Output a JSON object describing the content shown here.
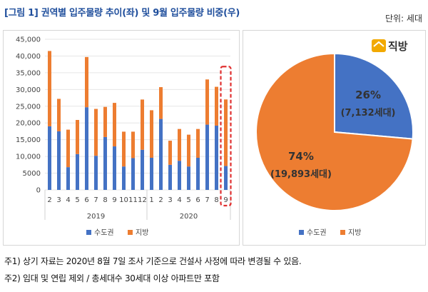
{
  "header": {
    "title": "[그림 1] 권역별 입주물량 추이(좌) 및 9월 입주물량 비중(우)",
    "unit": "단위: 세대"
  },
  "logo": {
    "text": "직방"
  },
  "notes": [
    "주1) 상기 자료는 2020년 8월 7일 조사 기준으로 건설사 사정에 따라 변경될 수 있음.",
    "주2) 임대 및 연립 제외 / 총세대수 30세대 이상 아파트만 포함"
  ],
  "colors": {
    "capital": "#4472c4",
    "regional": "#ed7d31",
    "highlight": "#e03030"
  },
  "chart_data": [
    {
      "type": "bar",
      "stacked": true,
      "categories": [
        "2",
        "3",
        "4",
        "5",
        "6",
        "7",
        "8",
        "9",
        "10",
        "11",
        "12",
        "1",
        "2",
        "3",
        "4",
        "5",
        "6",
        "7",
        "8",
        "9"
      ],
      "years": [
        {
          "label": "2019",
          "span": [
            0,
            10
          ]
        },
        {
          "label": "2020",
          "span": [
            11,
            19
          ]
        }
      ],
      "series": [
        {
          "name": "수도권",
          "color": "#4472c4",
          "values": [
            19000,
            17500,
            6800,
            10700,
            24700,
            10200,
            15800,
            13000,
            7000,
            9500,
            12000,
            9600,
            21200,
            7500,
            8700,
            7000,
            9600,
            19500,
            19200,
            7132
          ]
        },
        {
          "name": "지방",
          "color": "#ed7d31",
          "values": [
            22500,
            9700,
            11200,
            10200,
            15000,
            14000,
            9000,
            13000,
            10400,
            7900,
            15000,
            14200,
            9500,
            7200,
            9500,
            9500,
            8600,
            13500,
            11600,
            19893
          ]
        }
      ],
      "ylim": [
        0,
        45000
      ],
      "yticks": [
        "0",
        "5000",
        "10,000",
        "15,000",
        "20,000",
        "25,000",
        "30,000",
        "35,000",
        "40,000",
        "45,000"
      ],
      "highlight_index": 19,
      "legend_position": "bottom"
    },
    {
      "type": "pie",
      "slices": [
        {
          "name": "수도권",
          "value": 7132,
          "percent": "26%",
          "label": "(7,132세대)",
          "color": "#4472c4"
        },
        {
          "name": "지방",
          "value": 19893,
          "percent": "74%",
          "label": "(19,893세대)",
          "color": "#ed7d31"
        }
      ],
      "legend_position": "bottom"
    }
  ]
}
